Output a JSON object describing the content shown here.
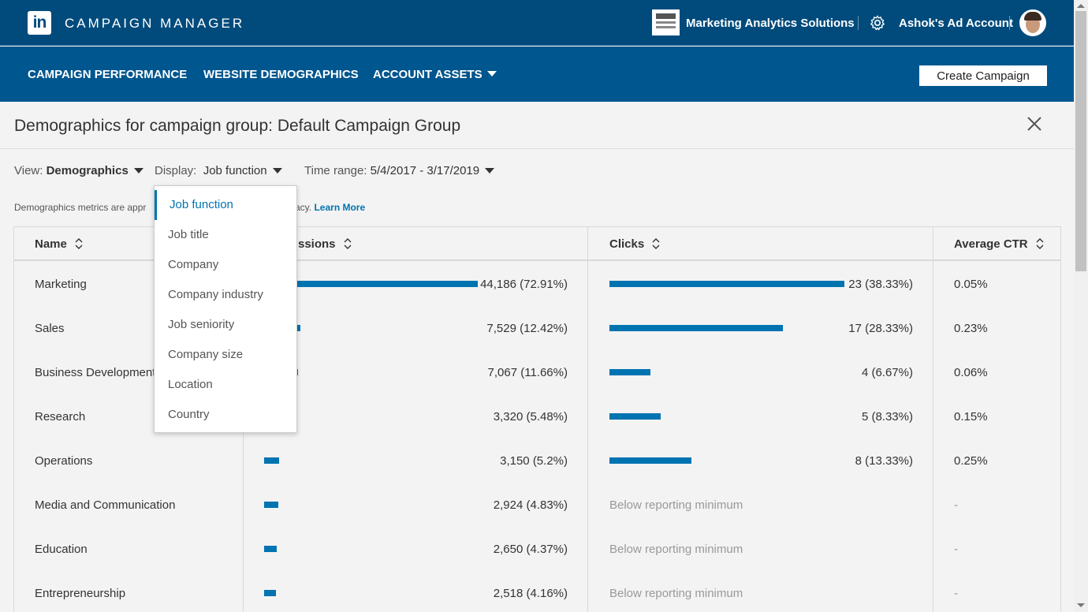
{
  "topbar": {
    "logo_text": "in",
    "app_title": "CAMPAIGN MANAGER",
    "org_name": "Marketing Analytics Solutions",
    "account_name": "Ashok's Ad Account"
  },
  "nav": {
    "campaign_performance": "CAMPAIGN PERFORMANCE",
    "website_demographics": "WEBSITE DEMOGRAPHICS",
    "account_assets": "ACCOUNT ASSETS",
    "create_campaign": "Create Campaign"
  },
  "page": {
    "title": "Demographics for campaign group: Default Campaign Group"
  },
  "filters": {
    "view_label": "View:",
    "view_value": "Demographics",
    "display_label": "Display:",
    "display_value": "Job function",
    "time_label": "Time range:",
    "time_value": "5/4/2017 - 3/17/2019"
  },
  "notice": {
    "text_before": "Demographics metrics are appr",
    "text_after": "acy.",
    "link": "Learn More"
  },
  "table": {
    "columns": {
      "name": "Name",
      "impressions": "ssions",
      "clicks": "Clicks",
      "ctr": "Average CTR"
    },
    "rows": [
      {
        "name": "Marketing",
        "impressions": "44,186 (72.91%)",
        "imp_pct": 72.91,
        "clicks": "23 (38.33%)",
        "click_pct": 38.33,
        "ctr": "0.05%"
      },
      {
        "name": "Sales",
        "impressions": "7,529 (12.42%)",
        "imp_pct": 12.42,
        "clicks": "17 (28.33%)",
        "click_pct": 28.33,
        "ctr": "0.23%"
      },
      {
        "name": "Business Development",
        "impressions": "7,067 (11.66%)",
        "imp_pct": 11.66,
        "clicks": "4 (6.67%)",
        "click_pct": 6.67,
        "ctr": "0.06%"
      },
      {
        "name": "Research",
        "impressions": "3,320 (5.48%)",
        "imp_pct": 5.48,
        "clicks": "5 (8.33%)",
        "click_pct": 8.33,
        "ctr": "0.15%"
      },
      {
        "name": "Operations",
        "impressions": "3,150 (5.2%)",
        "imp_pct": 5.2,
        "clicks": "8 (13.33%)",
        "click_pct": 13.33,
        "ctr": "0.25%"
      },
      {
        "name": "Media and Communication",
        "impressions": "2,924 (4.83%)",
        "imp_pct": 4.83,
        "clicks": "Below reporting minimum",
        "click_pct": null,
        "ctr": "-"
      },
      {
        "name": "Education",
        "impressions": "2,650 (4.37%)",
        "imp_pct": 4.37,
        "clicks": "Below reporting minimum",
        "click_pct": null,
        "ctr": "-"
      },
      {
        "name": "Entrepreneurship",
        "impressions": "2,518 (4.16%)",
        "imp_pct": 4.16,
        "clicks": "Below reporting minimum",
        "click_pct": null,
        "ctr": "-"
      }
    ]
  },
  "dropdown": {
    "options": [
      "Job function",
      "Job title",
      "Company",
      "Company industry",
      "Job seniority",
      "Company size",
      "Location",
      "Country"
    ],
    "selected": "Job function"
  },
  "colors": {
    "topbar": "#004b7c",
    "navbar": "#00568e",
    "accent": "#0073b1"
  }
}
